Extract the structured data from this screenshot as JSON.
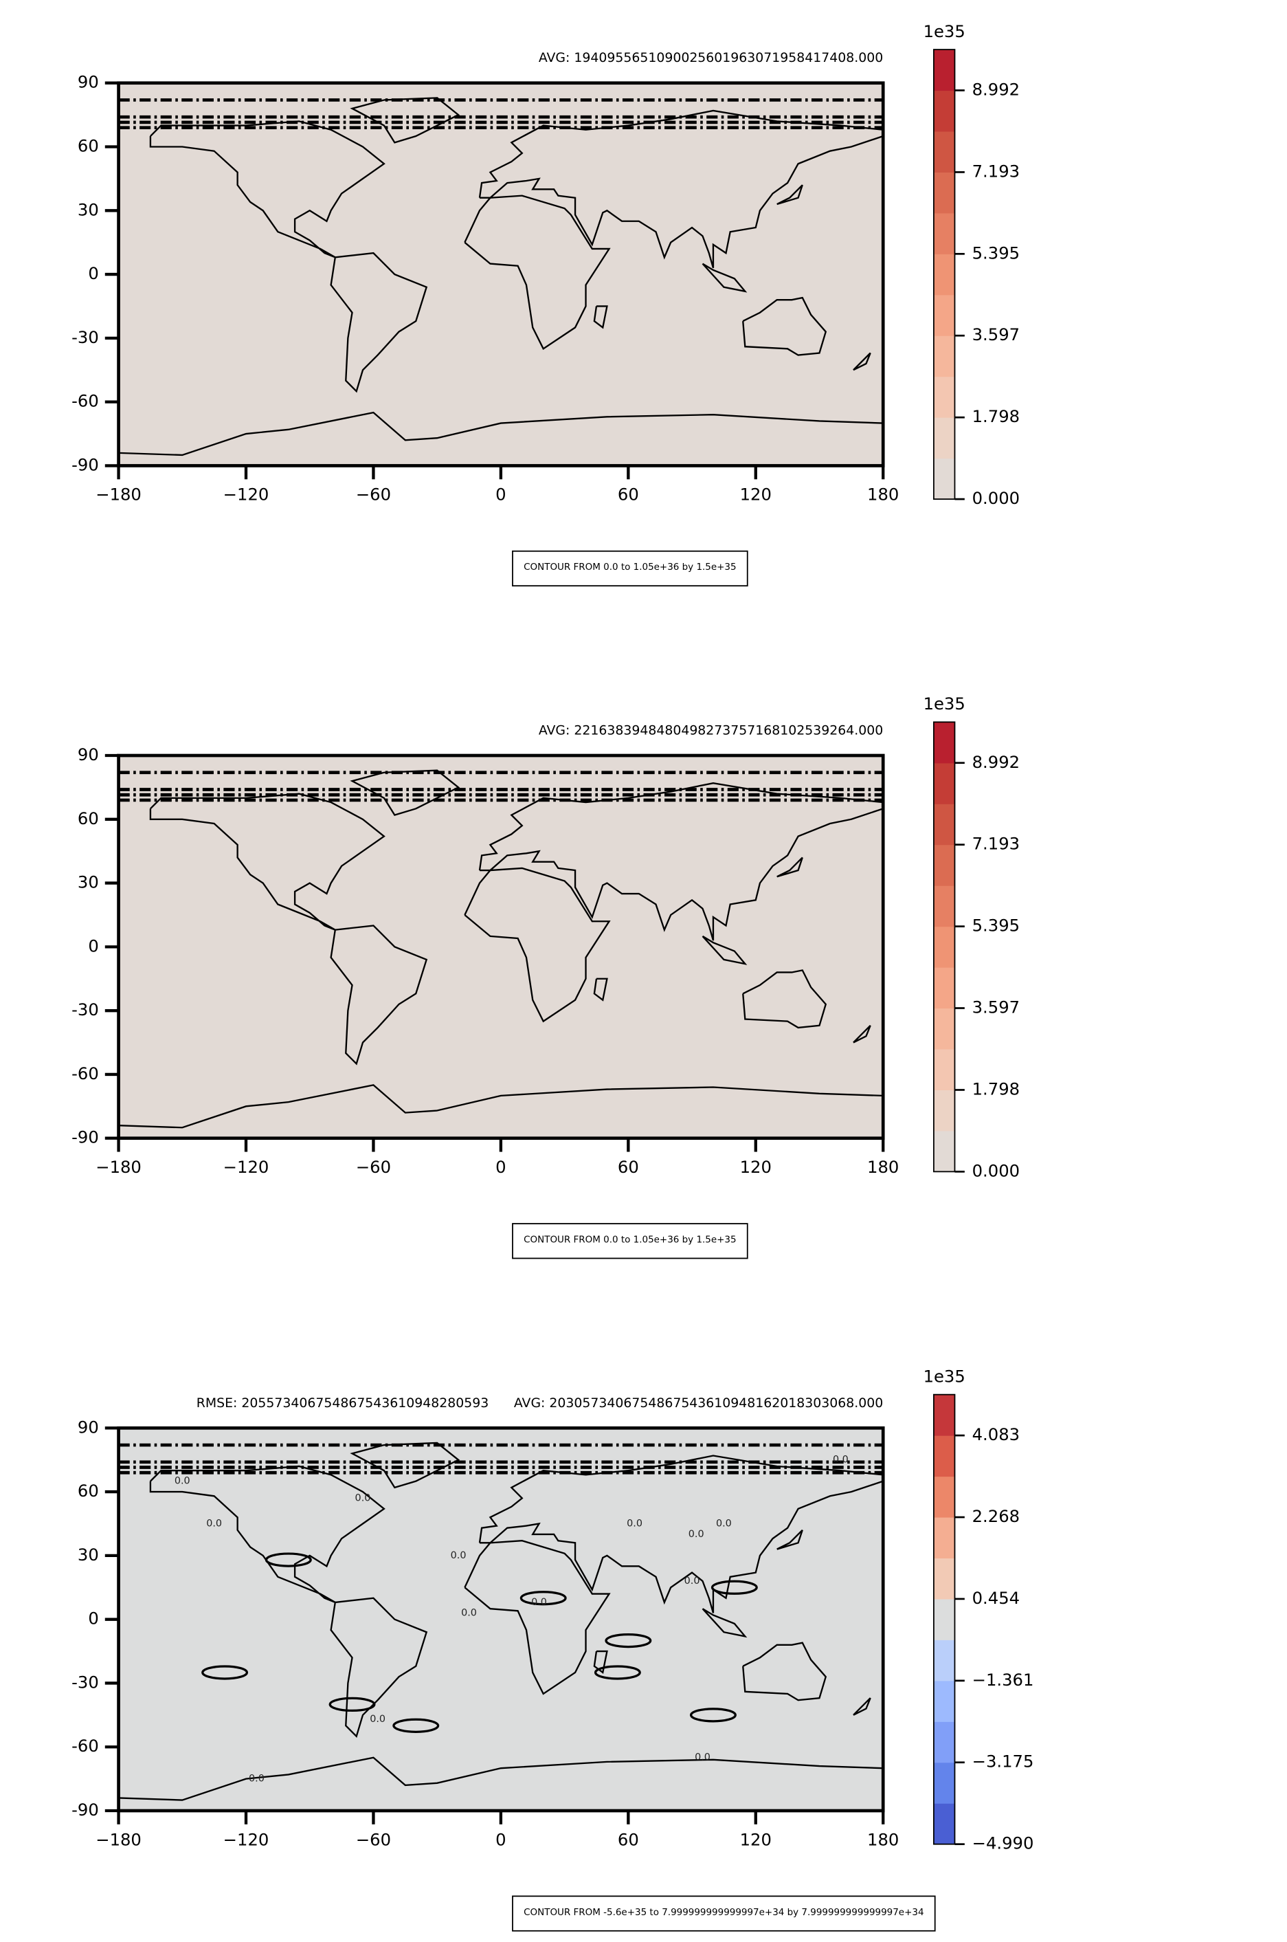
{
  "chart_data": [
    {
      "type": "contour",
      "title": "AVG: 194095565109002560196307195841​7408.000",
      "xlim": [
        -180,
        180
      ],
      "ylim": [
        -90,
        90
      ],
      "xticks": [
        {
          "value": -180,
          "label": "−180"
        },
        {
          "value": -120,
          "label": "−120"
        },
        {
          "value": -60,
          "label": "−60"
        },
        0,
        60,
        120,
        180
      ],
      "yticks": [
        90,
        60,
        30,
        0,
        -30,
        -60,
        -90
      ],
      "field_color": "#e2dad5",
      "colorbar": {
        "offset_label": "1e35",
        "lim": [
          0,
          9.89
        ],
        "ticks": [
          {
            "value": 0,
            "label": "0.000"
          },
          {
            "value": 1.798,
            "label": "1.798"
          },
          {
            "value": 3.597,
            "label": "3.597"
          },
          {
            "value": 5.395,
            "label": "5.395"
          },
          {
            "value": 7.193,
            "label": "7.193"
          },
          {
            "value": 8.992,
            "label": "8.992"
          }
        ],
        "colors": [
          "#e2dad5",
          "#ecd3c5",
          "#f3c6b1",
          "#f5b79c",
          "#f4a688",
          "#ef9474",
          "#e68063",
          "#db6c52",
          "#cf5643",
          "#c43d36",
          "#b9202f"
        ]
      },
      "note": "CONTOUR FROM 0.0 to 1.05e+36 by 1.5e+35"
    },
    {
      "type": "contour",
      "title": "AVG: 221638394848049827375716810253926​4.000",
      "xlim": [
        -180,
        180
      ],
      "ylim": [
        -90,
        90
      ],
      "xticks": [
        {
          "value": -180,
          "label": "−180"
        },
        {
          "value": -120,
          "label": "−120"
        },
        {
          "value": -60,
          "label": "−60"
        },
        0,
        60,
        120,
        180
      ],
      "yticks": [
        90,
        60,
        30,
        0,
        -30,
        -60,
        -90
      ],
      "field_color": "#e2dad5",
      "colorbar": {
        "offset_label": "1e35",
        "lim": [
          0,
          9.89
        ],
        "ticks": [
          {
            "value": 0,
            "label": "0.000"
          },
          {
            "value": 1.798,
            "label": "1.798"
          },
          {
            "value": 3.597,
            "label": "3.597"
          },
          {
            "value": 5.395,
            "label": "5.395"
          },
          {
            "value": 7.193,
            "label": "7.193"
          },
          {
            "value": 8.992,
            "label": "8.992"
          }
        ],
        "colors": [
          "#e2dad5",
          "#ecd3c5",
          "#f3c6b1",
          "#f5b79c",
          "#f4a688",
          "#ef9474",
          "#e68063",
          "#db6c52",
          "#cf5643",
          "#c43d36",
          "#b9202f"
        ]
      },
      "note": "CONTOUR FROM 0.0 to 1.05e+36 by 1.5e+35"
    },
    {
      "type": "contour",
      "title": "RMSE: 205573406754867543610948280593",
      "title_right": "AVG: 2030573406754867543610948162018303068.000",
      "xlim": [
        -180,
        180
      ],
      "ylim": [
        -90,
        90
      ],
      "xticks": [
        {
          "value": -180,
          "label": "−180"
        },
        {
          "value": -120,
          "label": "−120"
        },
        {
          "value": -60,
          "label": "−60"
        },
        0,
        60,
        120,
        180
      ],
      "yticks": [
        90,
        60,
        30,
        0,
        -30,
        -60,
        -90
      ],
      "field_color": "#dcdddd",
      "contour_label": "0.0",
      "colorbar": {
        "offset_label": "1e35",
        "lim": [
          -4.99,
          4.99
        ],
        "ticks": [
          {
            "value": -4.99,
            "label": "−4.990"
          },
          {
            "value": -3.175,
            "label": "−3.175"
          },
          {
            "value": -1.361,
            "label": "−1.361"
          },
          {
            "value": 0.454,
            "label": "0.454"
          },
          {
            "value": 2.268,
            "label": "2.268"
          },
          {
            "value": 4.083,
            "label": "4.083"
          }
        ],
        "colors": [
          "#4a5fd3",
          "#6384eb",
          "#819ff8",
          "#9dbafe",
          "#bacffa",
          "#dcdddd",
          "#f2cab5",
          "#f4ae92",
          "#ec8769",
          "#dc5d4a",
          "#c5373a"
        ]
      },
      "note": "CONTOUR FROM -5.6e+35 to 7.999999999999997e+34 by 7.999999999999997e+34"
    }
  ]
}
